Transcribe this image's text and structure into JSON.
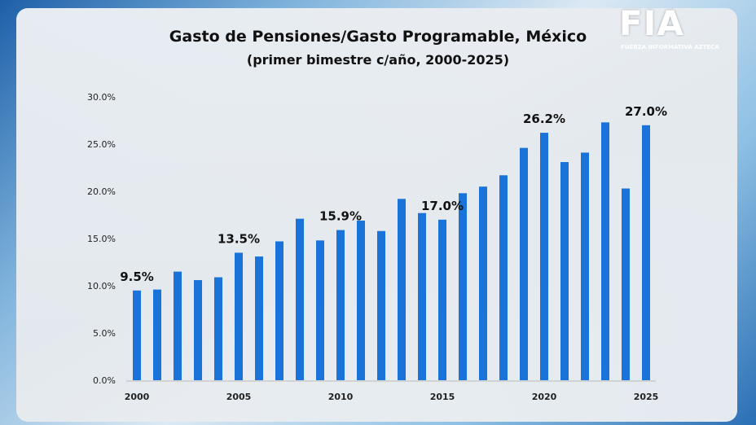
{
  "logo": {
    "text": "FIA",
    "tagline": "FUERZA INFORMATIVA AZTECA"
  },
  "colors": {
    "bar": "#1a73d9",
    "text": "#111111"
  },
  "chart_data": {
    "type": "bar",
    "title": "Gasto de Pensiones/Gasto Programable, México",
    "subtitle": "(primer bimestre c/año, 2000-2025)",
    "xlabel": "",
    "ylabel": "",
    "ylim": [
      0,
      30
    ],
    "yticks": [
      "0.0%",
      "5.0%",
      "10.0%",
      "15.0%",
      "20.0%",
      "25.0%",
      "30.0%"
    ],
    "xticks": [
      "2000",
      "2005",
      "2010",
      "2015",
      "2020",
      "2025"
    ],
    "grid": false,
    "categories": [
      2000,
      2001,
      2002,
      2003,
      2004,
      2005,
      2006,
      2007,
      2008,
      2009,
      2010,
      2011,
      2012,
      2013,
      2014,
      2015,
      2016,
      2017,
      2018,
      2019,
      2020,
      2021,
      2022,
      2023,
      2024,
      2025
    ],
    "values": [
      9.5,
      9.6,
      11.5,
      10.6,
      10.9,
      13.5,
      13.1,
      14.7,
      17.1,
      14.8,
      15.9,
      16.9,
      15.8,
      19.2,
      17.7,
      17.0,
      19.8,
      20.5,
      21.7,
      24.6,
      26.2,
      23.1,
      24.1,
      27.3,
      20.3,
      27.0
    ],
    "data_labels": [
      {
        "year": 2000,
        "text": "9.5%"
      },
      {
        "year": 2005,
        "text": "13.5%"
      },
      {
        "year": 2010,
        "text": "15.9%"
      },
      {
        "year": 2015,
        "text": "17.0%"
      },
      {
        "year": 2020,
        "text": "26.2%"
      },
      {
        "year": 2025,
        "text": "27.0%"
      }
    ]
  }
}
